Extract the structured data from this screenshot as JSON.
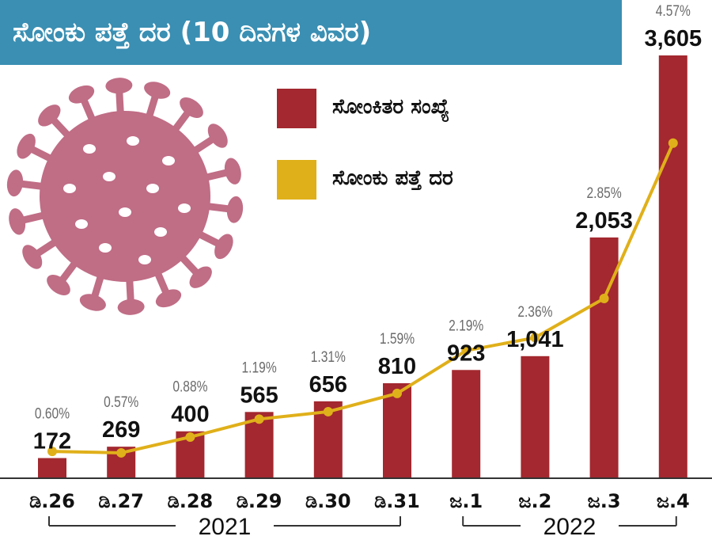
{
  "title": "ಸೋಂಕು ಪತ್ತೆ ದರ (10 ದಿನಗಳ ವಿವರ)",
  "legend": [
    {
      "label": "ಸೋಂಕಿತರ ಸಂಖ್ಯೆ",
      "color": "#a3282f"
    },
    {
      "label": "ಸೋಂಕು ಪತ್ತೆ ದರ",
      "color": "#e0b01a"
    }
  ],
  "icon": "coronavirus-icon",
  "colors": {
    "title_bg": "#3a8fb3",
    "bar": "#a3282f",
    "line": "#e0b01a",
    "virus": "#c06d86"
  },
  "chart_data": {
    "type": "bar",
    "categories": [
      "ಡಿ.26",
      "ಡಿ.27",
      "ಡಿ.28",
      "ಡಿ.29",
      "ಡಿ.30",
      "ಡಿ.31",
      "ಜ.1",
      "ಜ.2",
      "ಜ.3",
      "ಜ.4"
    ],
    "series": [
      {
        "name": "ಸೋಂಕಿತರ ಸಂಖ್ಯೆ",
        "type": "bar",
        "values": [
          172,
          269,
          400,
          565,
          656,
          810,
          923,
          1041,
          2053,
          3605
        ],
        "labels": [
          "172",
          "269",
          "400",
          "565",
          "656",
          "810",
          "923",
          "1,041",
          "2,053",
          "3,605"
        ]
      },
      {
        "name": "ಸೋಂಕು ಪತ್ತೆ ದರ",
        "type": "line",
        "values": [
          0.6,
          0.57,
          0.88,
          1.19,
          1.31,
          1.59,
          2.19,
          2.36,
          2.85,
          4.57
        ],
        "labels": [
          "0.60%",
          "0.57%",
          "0.88%",
          "1.19%",
          "1.31%",
          "1.59%",
          "2.19%",
          "2.36%",
          "2.85%",
          "4.57%"
        ]
      }
    ],
    "year_groups": [
      {
        "label": "2021",
        "from": 0,
        "to": 5
      },
      {
        "label": "2022",
        "from": 6,
        "to": 9
      }
    ],
    "ylim": [
      0,
      3605
    ],
    "rate_ylim": [
      0,
      5
    ]
  }
}
